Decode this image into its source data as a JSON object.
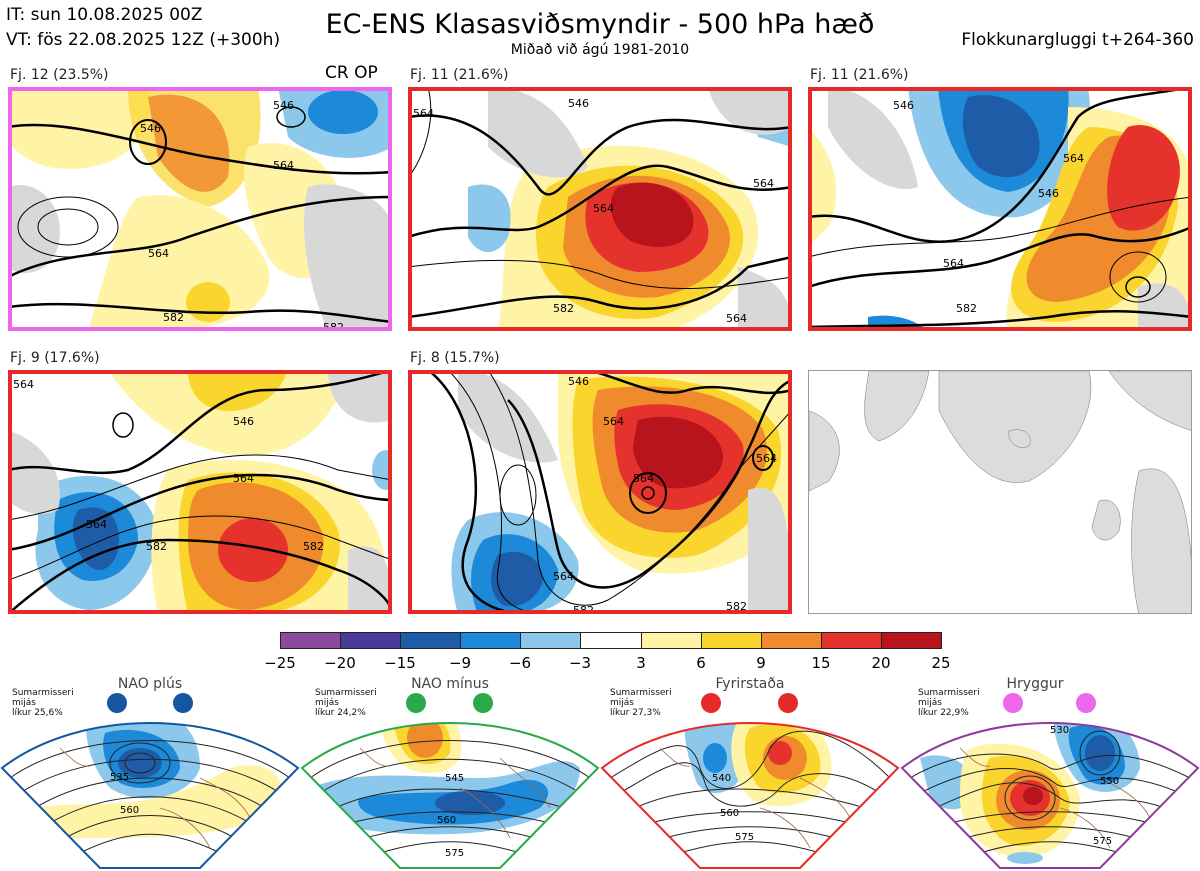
{
  "header": {
    "it": "IT: sun 10.08.2025 00Z",
    "vt": "VT: fös 22.08.2025 12Z  (+300h)",
    "title": "EC-ENS Klasasviðsmyndir - 500 hPa hæð",
    "subtitle": "Miðað við ágú 1981-2010",
    "window": "Flokkunargluggi t+264-360"
  },
  "crop_label": "CR OP",
  "panels": [
    {
      "label": "Fj. 12 (23.5%)",
      "border_color": "#ee66ee",
      "contours": [
        "546",
        "546",
        "564",
        "564",
        "582",
        "582"
      ]
    },
    {
      "label": "Fj. 11 (21.6%)",
      "border_color": "#e62a2a",
      "contours": [
        "546",
        "564",
        "564",
        "564",
        "582",
        "564"
      ]
    },
    {
      "label": "Fj. 11 (21.6%)",
      "border_color": "#e62a2a",
      "contours": [
        "546",
        "546",
        "564",
        "564",
        "582"
      ]
    },
    {
      "label": "Fj. 9 (17.6%)",
      "border_color": "#e62a2a",
      "contours": [
        "564",
        "546",
        "564",
        "564",
        "582",
        "582"
      ]
    },
    {
      "label": "Fj. 8 (15.7%)",
      "border_color": "#e62a2a",
      "contours": [
        "546",
        "564",
        "564",
        "564",
        "582",
        "564",
        "582"
      ]
    }
  ],
  "colorbar": {
    "colors": [
      "#8b4a9e",
      "#4a3a9a",
      "#1e5ca8",
      "#1c8ad8",
      "#8cc8ec",
      "#ffffff",
      "#fff3a6",
      "#fad52e",
      "#f08b2d",
      "#e5322c",
      "#b8141d"
    ],
    "ticks": [
      "−25",
      "−20",
      "−15",
      "−9",
      "−6",
      "−3",
      "3",
      "6",
      "9",
      "15",
      "20",
      "25"
    ]
  },
  "regimes": [
    {
      "title": "NAO plús",
      "note": [
        "Sumarmisseri",
        "mijás",
        "líkur 25,6%"
      ],
      "color": "#1456a0",
      "dots": 2,
      "labels": [
        "535",
        "560"
      ]
    },
    {
      "title": "NAO mínus",
      "note": [
        "Sumarmisseri",
        "mijás",
        "líkur 24,2%"
      ],
      "color": "#2aa84a",
      "dots": 2,
      "labels": [
        "545",
        "560",
        "575"
      ]
    },
    {
      "title": "Fyrirstaða",
      "note": [
        "Sumarmisseri",
        "mijás",
        "líkur 27,3%"
      ],
      "color": "#e62a2a",
      "dots": 2,
      "labels": [
        "540",
        "560",
        "575"
      ]
    },
    {
      "title": "Hryggur",
      "note": [
        "Sumarmisseri",
        "mijás",
        "líkur 22,9%"
      ],
      "color": "#ee66ee",
      "dots": 2,
      "labels": [
        "530",
        "550",
        "575"
      ]
    }
  ]
}
